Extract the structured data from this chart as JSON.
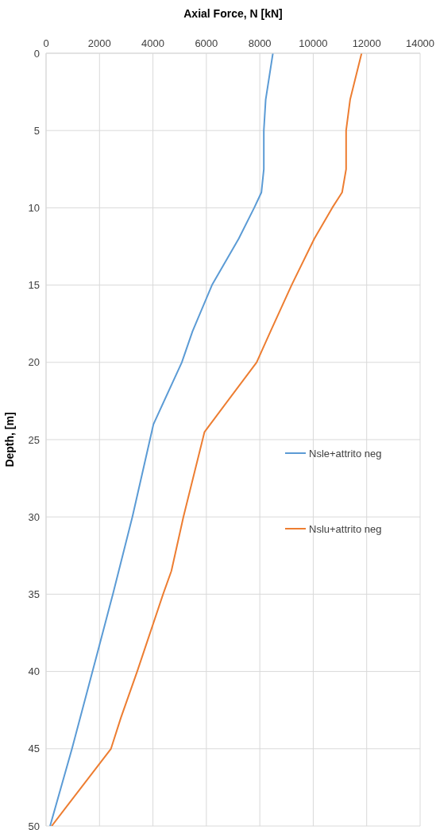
{
  "chart_data": {
    "type": "line",
    "xlabel": "Axial Force,  N  [kN]",
    "ylabel": "Depth,  [m]",
    "xlim": [
      0,
      14000
    ],
    "xticks": [
      0,
      2000,
      4000,
      6000,
      8000,
      10000,
      12000,
      14000
    ],
    "ylim": [
      50,
      0
    ],
    "yticks": [
      0,
      5,
      10,
      15,
      20,
      25,
      30,
      35,
      40,
      45,
      50
    ],
    "grid": true,
    "legend": "right",
    "marker": "none",
    "line_style": "solid",
    "series": [
      {
        "name": "Nsle+attrito neg",
        "color": "#5b9bd5",
        "x": [
          8490,
          8220,
          8150,
          8150,
          8060,
          7790,
          7210,
          6210,
          5480,
          5080,
          4020,
          3230,
          2500,
          1890,
          970,
          150
        ],
        "values": [
          0,
          3,
          5,
          7.5,
          9,
          10,
          12,
          15,
          18,
          20,
          24,
          30,
          35,
          39,
          45,
          50
        ]
      },
      {
        "name": "Nslu+attrito neg",
        "color": "#ed7d31",
        "x": [
          11810,
          11380,
          11230,
          11230,
          11080,
          10710,
          10040,
          9190,
          8400,
          7880,
          5930,
          5140,
          4690,
          4380,
          3410,
          2800,
          2430,
          210
        ],
        "values": [
          0,
          3,
          5,
          7.5,
          9,
          10,
          12,
          15,
          18,
          20,
          24.5,
          30,
          33.5,
          35,
          40,
          43,
          45,
          50
        ]
      }
    ]
  }
}
